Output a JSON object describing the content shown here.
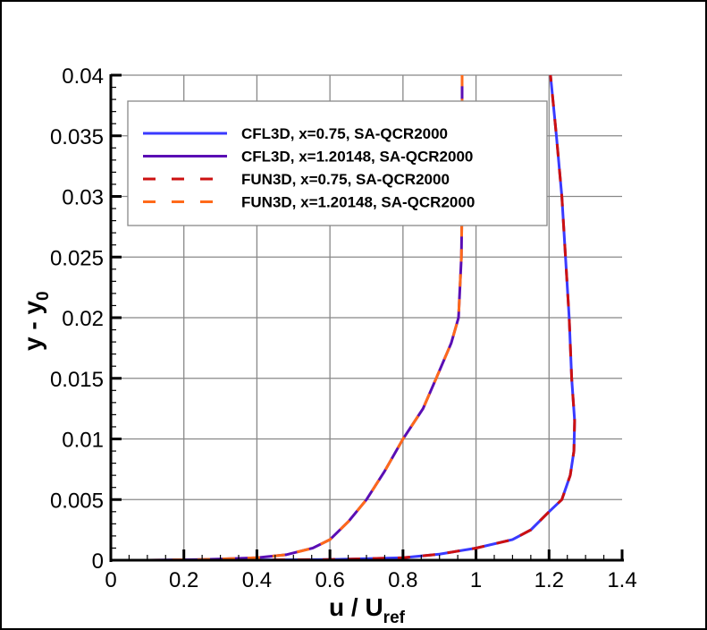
{
  "chart_data": {
    "type": "line",
    "xlabel": "u / U",
    "xlabel_sub": "ref",
    "ylabel": "y - y",
    "ylabel_sub": "0",
    "xlim": [
      0,
      1.4
    ],
    "ylim": [
      0,
      0.04
    ],
    "x_ticks": [
      "0",
      "0.2",
      "0.4",
      "0.6",
      "0.8",
      "1",
      "1.2",
      "1.4"
    ],
    "y_ticks": [
      "0",
      "0.005",
      "0.01",
      "0.015",
      "0.02",
      "0.025",
      "0.03",
      "0.035",
      "0.04"
    ],
    "grid": true,
    "legend_position": "top-left",
    "series": [
      {
        "name": "CFL3D, x=0.75, SA-QCR2000",
        "color": "#3a3aff",
        "dash": "solid",
        "x": [
          0.1,
          0.4,
          0.6,
          0.8,
          0.9,
          1.0,
          1.1,
          1.15,
          1.2,
          1.235,
          1.258,
          1.268,
          1.27,
          1.262,
          1.255,
          1.245,
          1.235,
          1.22,
          1.204
        ],
        "y": [
          0,
          2e-05,
          5e-05,
          0.0002,
          0.0005,
          0.001,
          0.0017,
          0.0025,
          0.004,
          0.005,
          0.007,
          0.009,
          0.0115,
          0.015,
          0.02,
          0.025,
          0.03,
          0.035,
          0.04
        ]
      },
      {
        "name": "CFL3D, x=1.20148, SA-QCR2000",
        "color": "#5a0eb4",
        "dash": "solid",
        "x": [
          0.1,
          0.25,
          0.4,
          0.48,
          0.553,
          0.6,
          0.651,
          0.7,
          0.749,
          0.8,
          0.855,
          0.891,
          0.932,
          0.952,
          0.96,
          0.962,
          0.962
        ],
        "y": [
          0,
          5e-05,
          0.0002,
          0.00045,
          0.001,
          0.0017,
          0.0032,
          0.005,
          0.0073,
          0.01,
          0.0125,
          0.015,
          0.0179,
          0.02,
          0.025,
          0.03,
          0.04
        ]
      },
      {
        "name": "FUN3D, x=0.75, SA-QCR2000",
        "color": "#cc1010",
        "dash": "dashed",
        "x": [
          0.1,
          0.4,
          0.6,
          0.8,
          0.9,
          1.0,
          1.1,
          1.15,
          1.2,
          1.235,
          1.258,
          1.268,
          1.27,
          1.262,
          1.255,
          1.245,
          1.235,
          1.22,
          1.204
        ],
        "y": [
          0,
          2e-05,
          5e-05,
          0.0002,
          0.0005,
          0.001,
          0.0017,
          0.0025,
          0.004,
          0.005,
          0.007,
          0.009,
          0.0115,
          0.015,
          0.02,
          0.025,
          0.03,
          0.035,
          0.04
        ]
      },
      {
        "name": "FUN3D, x=1.20148, SA-QCR2000",
        "color": "#ff6a1a",
        "dash": "dashed",
        "x": [
          0.1,
          0.25,
          0.4,
          0.48,
          0.553,
          0.6,
          0.651,
          0.7,
          0.749,
          0.8,
          0.855,
          0.891,
          0.932,
          0.952,
          0.96,
          0.962,
          0.962
        ],
        "y": [
          0,
          5e-05,
          0.0002,
          0.00045,
          0.001,
          0.0017,
          0.0032,
          0.005,
          0.0073,
          0.01,
          0.0125,
          0.015,
          0.0179,
          0.02,
          0.025,
          0.03,
          0.04
        ]
      }
    ]
  }
}
